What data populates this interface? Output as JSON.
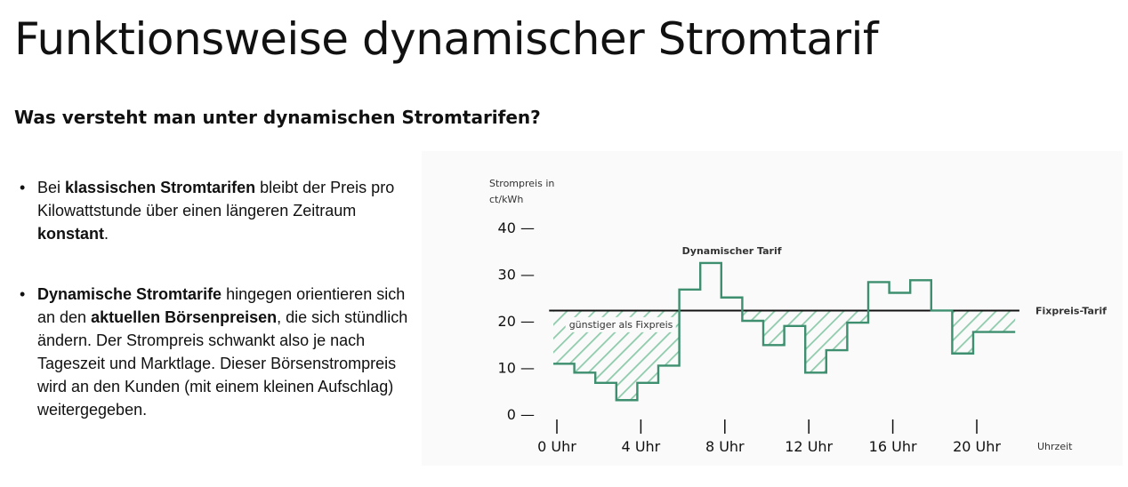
{
  "page": {
    "title": "Funktionsweise dynamischer Stromtarif",
    "subtitle": "Was versteht man unter dynamischen Stromtarifen?"
  },
  "bullets": [
    [
      {
        "text": "Bei ",
        "bold": false
      },
      {
        "text": "klassischen Stromtarifen",
        "bold": true
      },
      {
        "text": " bleibt der Preis pro Kilowattstunde über einen längeren Zeitraum ",
        "bold": false
      },
      {
        "text": "konstant",
        "bold": true
      },
      {
        "text": ".",
        "bold": false
      }
    ],
    [
      {
        "text": "Dynamische Stromtarife",
        "bold": true
      },
      {
        "text": " hingegen orientieren sich an den ",
        "bold": false
      },
      {
        "text": "aktuellen Börsenpreisen",
        "bold": true
      },
      {
        "text": ", die sich stündlich ändern. Der Strompreis schwankt also je nach Tageszeit und Marktlage. Dieser Börsenstrompreis wird an den Kunden (mit einem kleinen Aufschlag) weitergegeben.",
        "bold": false
      }
    ]
  ],
  "chart_data": {
    "type": "line",
    "ylabel": "Strompreis in ct/kWh",
    "xlabel": "Uhrzeit",
    "ylim": [
      0,
      40
    ],
    "xlim": [
      0,
      22
    ],
    "yticks": [
      40,
      30,
      20,
      10,
      0
    ],
    "ytick_labels": [
      "40 —",
      "30 —",
      "20 —",
      "10 —",
      "0 —"
    ],
    "xticks": [
      0,
      4,
      8,
      12,
      16,
      20
    ],
    "xtick_labels": [
      "0 Uhr",
      "4 Uhr",
      "8 Uhr",
      "12 Uhr",
      "16 Uhr",
      "20 Uhr"
    ],
    "fixed_price": 22.2,
    "fixed_price_label": "Fixpreis-Tarif",
    "dynamic_label": "Dynamischer Tarif",
    "cheaper_label": "günstiger als Fixpreis",
    "series": [
      {
        "name": "Dynamischer Tarif",
        "step": true,
        "hours": [
          0,
          1,
          2,
          3,
          4,
          5,
          6,
          7,
          8,
          9,
          10,
          11,
          12,
          13,
          14,
          15,
          16,
          17,
          18,
          19,
          20,
          21
        ],
        "values": [
          10.8,
          8.9,
          6.7,
          3.0,
          6.7,
          10.4,
          26.7,
          32.4,
          25.0,
          20.0,
          14.8,
          18.9,
          8.9,
          13.7,
          19.6,
          28.3,
          26.0,
          28.7,
          22.2,
          13.0,
          17.6,
          17.6
        ]
      }
    ],
    "colors": {
      "dynamic": "#3d8f6f",
      "fixed": "#111111",
      "hatch": "#8fcbac",
      "cheaper_text": "#7fd3c4"
    }
  }
}
